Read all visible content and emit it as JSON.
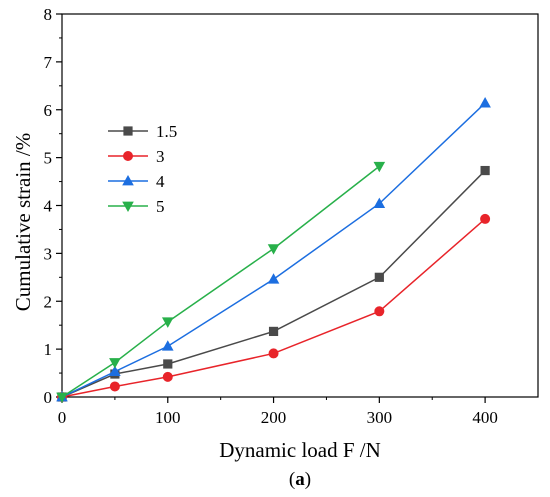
{
  "chart_data": {
    "type": "line",
    "xlabel": "Dynamic load F /N",
    "ylabel": "Cumulative strain /%",
    "caption": {
      "open": "(",
      "letter": "a",
      "close": ")"
    },
    "xlim": [
      0,
      450
    ],
    "ylim": [
      0,
      8
    ],
    "xticks": [
      0,
      100,
      200,
      300,
      400
    ],
    "yticks": [
      0,
      1,
      2,
      3,
      4,
      5,
      6,
      7,
      8
    ],
    "grid": false,
    "legend_position": "upper-left",
    "series": [
      {
        "name": "1.5",
        "color": "#4a4a4a",
        "marker": "square",
        "x": [
          0,
          50,
          100,
          200,
          300,
          400
        ],
        "y": [
          0,
          0.48,
          0.69,
          1.37,
          2.5,
          4.73
        ]
      },
      {
        "name": "3",
        "color": "#e8242a",
        "marker": "circle",
        "x": [
          0,
          50,
          100,
          200,
          300,
          400
        ],
        "y": [
          0,
          0.22,
          0.42,
          0.91,
          1.79,
          3.72
        ]
      },
      {
        "name": "4",
        "color": "#1c6ee0",
        "marker": "triangle-up",
        "x": [
          0,
          50,
          100,
          200,
          300,
          400
        ],
        "y": [
          0,
          0.53,
          1.06,
          2.46,
          4.04,
          6.14
        ]
      },
      {
        "name": "5",
        "color": "#28b04a",
        "marker": "triangle-down",
        "x": [
          0,
          50,
          100,
          200,
          300
        ],
        "y": [
          0,
          0.72,
          1.57,
          3.1,
          4.82
        ]
      }
    ]
  }
}
